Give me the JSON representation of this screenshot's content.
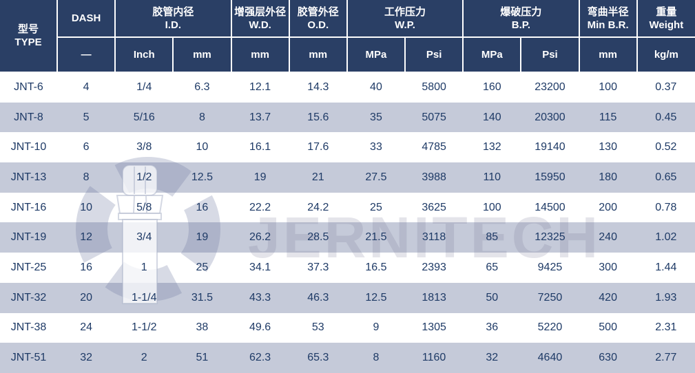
{
  "table": {
    "header": {
      "type": {
        "zh": "型号",
        "en": "TYPE"
      },
      "dash": "DASH",
      "id": {
        "zh": "胶管内径",
        "en": "I.D."
      },
      "wd": {
        "zh": "增强层外径",
        "en": "W.D."
      },
      "od": {
        "zh": "胶管外径",
        "en": "O.D."
      },
      "wp": {
        "zh": "工作压力",
        "en": "W.P."
      },
      "bp": {
        "zh": "爆破压力",
        "en": "B.P."
      },
      "br": {
        "zh": "弯曲半径",
        "en": "Min B.R."
      },
      "weight": {
        "zh": "重量",
        "en": "Weight"
      }
    },
    "units": [
      "—",
      "Inch",
      "mm",
      "mm",
      "mm",
      "MPa",
      "Psi",
      "MPa",
      "Psi",
      "mm",
      "kg/m"
    ],
    "rows": [
      [
        "JNT-6",
        "4",
        "1/4",
        "6.3",
        "12.1",
        "14.3",
        "40",
        "5800",
        "160",
        "23200",
        "100",
        "0.37"
      ],
      [
        "JNT-8",
        "5",
        "5/16",
        "8",
        "13.7",
        "15.6",
        "35",
        "5075",
        "140",
        "20300",
        "115",
        "0.45"
      ],
      [
        "JNT-10",
        "6",
        "3/8",
        "10",
        "16.1",
        "17.6",
        "33",
        "4785",
        "132",
        "19140",
        "130",
        "0.52"
      ],
      [
        "JNT-13",
        "8",
        "1/2",
        "12.5",
        "19",
        "21",
        "27.5",
        "3988",
        "110",
        "15950",
        "180",
        "0.65"
      ],
      [
        "JNT-16",
        "10",
        "5/8",
        "16",
        "22.2",
        "24.2",
        "25",
        "3625",
        "100",
        "14500",
        "200",
        "0.78"
      ],
      [
        "JNT-19",
        "12",
        "3/4",
        "19",
        "26.2",
        "28.5",
        "21.5",
        "3118",
        "85",
        "12325",
        "240",
        "1.02"
      ],
      [
        "JNT-25",
        "16",
        "1",
        "25",
        "34.1",
        "37.3",
        "16.5",
        "2393",
        "65",
        "9425",
        "300",
        "1.44"
      ],
      [
        "JNT-32",
        "20",
        "1-1/4",
        "31.5",
        "43.3",
        "46.3",
        "12.5",
        "1813",
        "50",
        "7250",
        "420",
        "1.93"
      ],
      [
        "JNT-38",
        "24",
        "1-1/2",
        "38",
        "49.6",
        "53",
        "9",
        "1305",
        "36",
        "5220",
        "500",
        "2.31"
      ],
      [
        "JNT-51",
        "32",
        "2",
        "51",
        "62.3",
        "65.3",
        "8",
        "1160",
        "32",
        "4640",
        "630",
        "2.77"
      ]
    ]
  },
  "watermark": {
    "text": "JERNITECH"
  },
  "colors": {
    "header_bg": "#2A3F65",
    "row_bg": "#FFFFFF",
    "row_alt_bg": "#C5CAD9",
    "cell_text": "#1E3A66",
    "header_text": "#FFFFFF"
  }
}
